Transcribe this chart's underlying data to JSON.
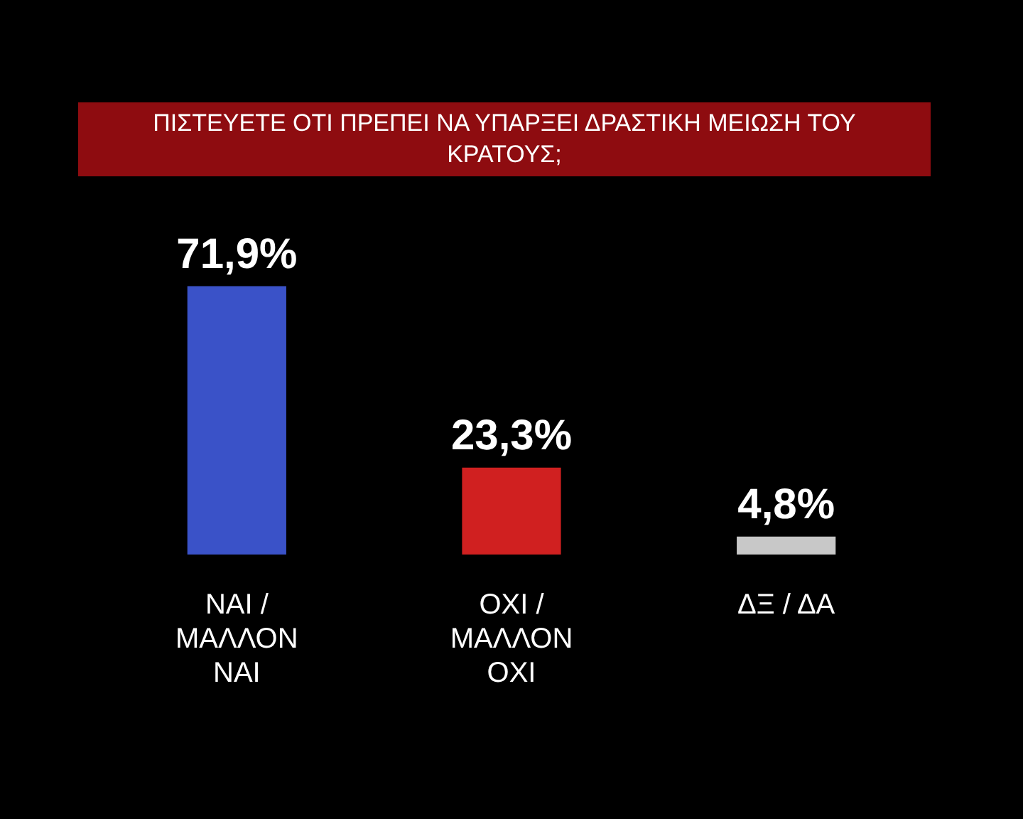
{
  "chart_data": {
    "type": "bar",
    "title": "ΠΙΣΤΕΥΕΤΕ ΟΤΙ ΠΡΕΠΕΙ ΝΑ ΥΠΑΡΞΕΙ ΔΡΑΣΤΙΚΗ ΜΕΙΩΣΗ ΤΟΥ ΚΡΑΤΟΥΣ;",
    "categories": [
      "ΝΑΙ / ΜΑΛΛΟΝ ΝΑΙ",
      "ΟΧΙ / ΜΑΛΛΟΝ ΟΧΙ",
      "ΔΞ / ΔΑ"
    ],
    "values": [
      71.9,
      23.3,
      4.8
    ],
    "colors": [
      "#3a52c8",
      "#d02020",
      "#c8c8c8"
    ],
    "value_labels": [
      "71,9%",
      "23,3%",
      "4,8%"
    ],
    "legend": false
  }
}
